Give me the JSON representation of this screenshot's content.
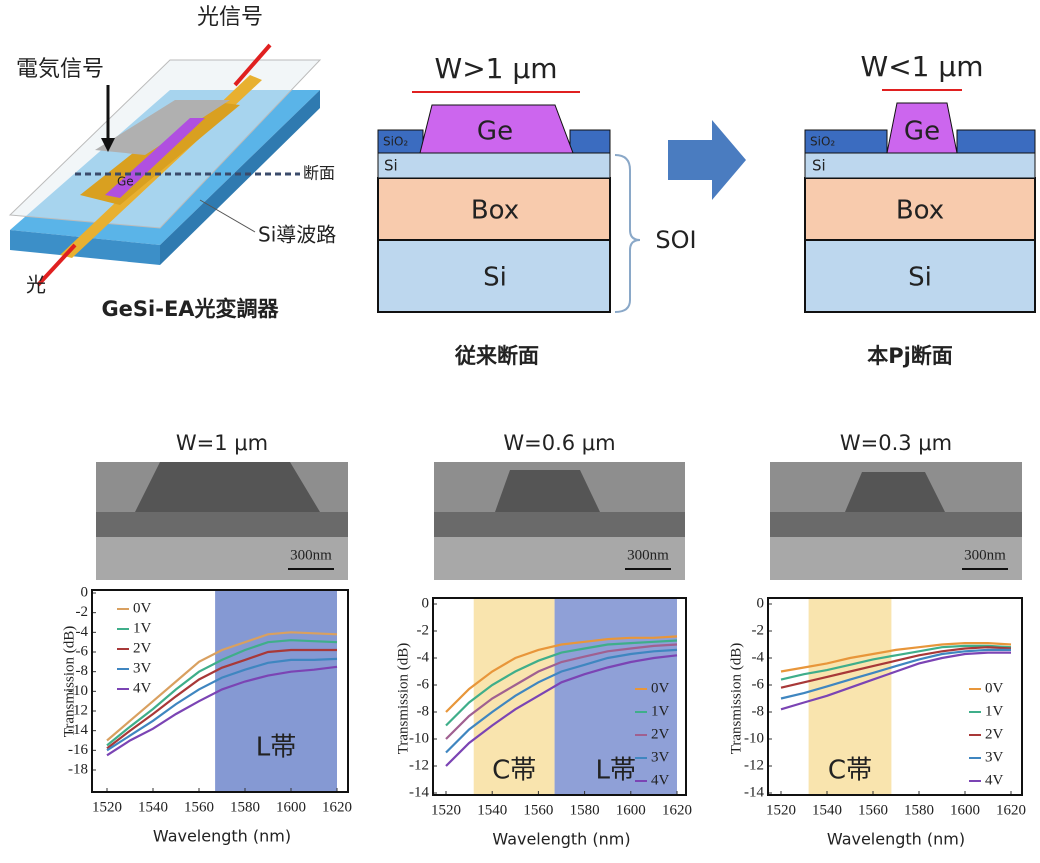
{
  "device": {
    "signal_out": "光信号",
    "signal_in": "電気信号",
    "section": "断面",
    "ge": "Ge",
    "waveguide": "Si導波路",
    "light": "光",
    "caption": "GeSi-EA光変調器"
  },
  "conventional": {
    "width": "W>1 μm",
    "ge": "Ge",
    "sio2": "SiO₂",
    "si_top": "Si",
    "box": "Box",
    "si_bottom": "Si",
    "soi": "SOI",
    "caption": "従来断面"
  },
  "proposed": {
    "width": "W<1 μm",
    "ge": "Ge",
    "sio2": "SiO₂",
    "si_top": "Si",
    "box": "Box",
    "si_bottom": "Si",
    "caption": "本Pj断面"
  },
  "chart_data": [
    {
      "type": "line",
      "title": "W=1 μm",
      "scale_bar": "300nm",
      "xlabel": "Wavelength (nm)",
      "ylabel": "Transmission (dB)",
      "x": [
        1520,
        1530,
        1540,
        1550,
        1560,
        1570,
        1580,
        1590,
        1600,
        1610,
        1620
      ],
      "xlim": [
        1520,
        1620
      ],
      "ylim": [
        -18,
        0
      ],
      "xticks": [
        1520,
        1540,
        1560,
        1580,
        1600,
        1620
      ],
      "yticks": [
        0,
        -2,
        -4,
        -6,
        -8,
        -10,
        -12,
        -14,
        -16,
        -18
      ],
      "legend": "upper left",
      "bands": [
        {
          "label": "L帯",
          "start": 1567,
          "end": 1620,
          "color": "#7087cb"
        }
      ],
      "series": [
        {
          "name": "0V",
          "color": "#d9a060",
          "values": [
            -15,
            -13,
            -11,
            -9,
            -7,
            -5.8,
            -5,
            -4.2,
            -4,
            -4.1,
            -4.2
          ]
        },
        {
          "name": "1V",
          "color": "#3fae8a",
          "values": [
            -15.5,
            -13.6,
            -11.8,
            -9.8,
            -8,
            -6.8,
            -5.8,
            -5,
            -4.8,
            -4.9,
            -5
          ]
        },
        {
          "name": "2V",
          "color": "#a83838",
          "values": [
            -15.8,
            -14,
            -12.3,
            -10.5,
            -8.8,
            -7.6,
            -6.8,
            -6,
            -5.8,
            -5.8,
            -5.8
          ]
        },
        {
          "name": "3V",
          "color": "#3f86c0",
          "values": [
            -16,
            -14.5,
            -13,
            -11.3,
            -9.8,
            -8.6,
            -7.8,
            -7.1,
            -6.8,
            -6.8,
            -6.7
          ]
        },
        {
          "name": "4V",
          "color": "#7b44b4",
          "values": [
            -16.5,
            -15,
            -13.8,
            -12.3,
            -11,
            -9.8,
            -9,
            -8.4,
            -8,
            -7.8,
            -7.5
          ]
        }
      ]
    },
    {
      "type": "line",
      "title": "W=0.6 μm",
      "scale_bar": "300nm",
      "xlabel": "Wavelength (nm)",
      "ylabel": "Transmission (dB)",
      "x": [
        1520,
        1530,
        1540,
        1550,
        1560,
        1570,
        1580,
        1590,
        1600,
        1610,
        1620
      ],
      "xlim": [
        1520,
        1620
      ],
      "ylim": [
        -14,
        0
      ],
      "xticks": [
        1520,
        1540,
        1560,
        1580,
        1600,
        1620
      ],
      "yticks": [
        0,
        -2,
        -4,
        -6,
        -8,
        -10,
        -12,
        -14
      ],
      "legend": "right",
      "bands": [
        {
          "label": "C帯",
          "start": 1532,
          "end": 1567,
          "color": "#f8dfa0"
        },
        {
          "label": "L帯",
          "start": 1567,
          "end": 1620,
          "color": "#7b8fd0"
        }
      ],
      "series": [
        {
          "name": "0V",
          "color": "#e8963a",
          "values": [
            -8,
            -6.3,
            -5,
            -4,
            -3.4,
            -3,
            -2.8,
            -2.6,
            -2.5,
            -2.5,
            -2.4
          ]
        },
        {
          "name": "1V",
          "color": "#3fae8a",
          "values": [
            -9,
            -7.3,
            -6,
            -5,
            -4.2,
            -3.6,
            -3.3,
            -3,
            -2.9,
            -2.8,
            -2.7
          ]
        },
        {
          "name": "2V",
          "color": "#a06090",
          "values": [
            -10,
            -8.3,
            -7,
            -6,
            -5,
            -4.3,
            -3.9,
            -3.5,
            -3.3,
            -3.1,
            -3
          ]
        },
        {
          "name": "3V",
          "color": "#3f86c0",
          "values": [
            -11,
            -9.3,
            -8,
            -6.8,
            -5.8,
            -5,
            -4.5,
            -4,
            -3.7,
            -3.5,
            -3.4
          ]
        },
        {
          "name": "4V",
          "color": "#7b44b4",
          "values": [
            -12,
            -10.3,
            -9,
            -7.8,
            -6.8,
            -5.8,
            -5.2,
            -4.7,
            -4.3,
            -4,
            -3.8
          ]
        }
      ]
    },
    {
      "type": "line",
      "title": "W=0.3 μm",
      "scale_bar": "300nm",
      "xlabel": "Wavelength (nm)",
      "ylabel": "Transmission (dB)",
      "x": [
        1520,
        1530,
        1540,
        1550,
        1560,
        1570,
        1580,
        1590,
        1600,
        1610,
        1620
      ],
      "xlim": [
        1520,
        1620
      ],
      "ylim": [
        -14,
        0
      ],
      "xticks": [
        1520,
        1540,
        1560,
        1580,
        1600,
        1620
      ],
      "yticks": [
        0,
        -2,
        -4,
        -6,
        -8,
        -10,
        -12,
        -14
      ],
      "legend": "right",
      "bands": [
        {
          "label": "C帯",
          "start": 1532,
          "end": 1568,
          "color": "#f8dfa0"
        }
      ],
      "series": [
        {
          "name": "0V",
          "color": "#e8963a",
          "values": [
            -5,
            -4.7,
            -4.4,
            -4,
            -3.7,
            -3.4,
            -3.2,
            -3,
            -2.9,
            -2.9,
            -3
          ]
        },
        {
          "name": "1V",
          "color": "#3fae8a",
          "values": [
            -5.6,
            -5.2,
            -4.9,
            -4.5,
            -4.1,
            -3.8,
            -3.5,
            -3.2,
            -3.1,
            -3.1,
            -3.2
          ]
        },
        {
          "name": "2V",
          "color": "#a83838",
          "values": [
            -6.2,
            -5.8,
            -5.4,
            -5,
            -4.6,
            -4.2,
            -3.8,
            -3.5,
            -3.3,
            -3.2,
            -3.3
          ]
        },
        {
          "name": "3V",
          "color": "#3f86c0",
          "values": [
            -7,
            -6.6,
            -6.1,
            -5.6,
            -5.1,
            -4.6,
            -4.1,
            -3.7,
            -3.5,
            -3.4,
            -3.4
          ]
        },
        {
          "name": "4V",
          "color": "#7b44b4",
          "values": [
            -7.8,
            -7.3,
            -6.8,
            -6.2,
            -5.6,
            -5,
            -4.4,
            -4,
            -3.7,
            -3.6,
            -3.6
          ]
        }
      ]
    }
  ]
}
